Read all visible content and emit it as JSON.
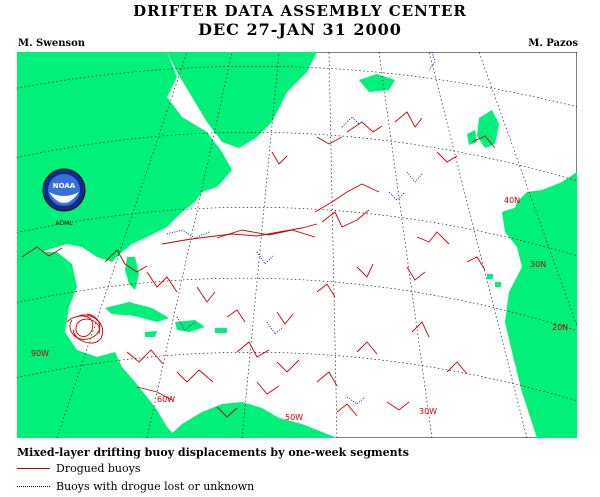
{
  "header": {
    "title": "DRIFTER DATA ASSEMBLY CENTER",
    "dates": "DEC 27-JAN 31 2000",
    "author_left": "M. Swenson",
    "author_right": "M. Pazos"
  },
  "logo": {
    "text": "NOAA",
    "caption": "AOML"
  },
  "map": {
    "colors": {
      "land": "#00f07a",
      "grid": "#000000",
      "drogued": "#cc0000",
      "undrogued": "#0000cc"
    },
    "lat_labels": [
      "40N",
      "30N",
      "20N"
    ],
    "lon_labels": [
      "90W",
      "60W",
      "50W",
      "30W"
    ]
  },
  "legend": {
    "title": "Mixed-layer drifting buoy displacements by one-week  segments",
    "drogued": "Drogued buoys",
    "undrogued": "Buoys with drogue lost or unknown"
  }
}
